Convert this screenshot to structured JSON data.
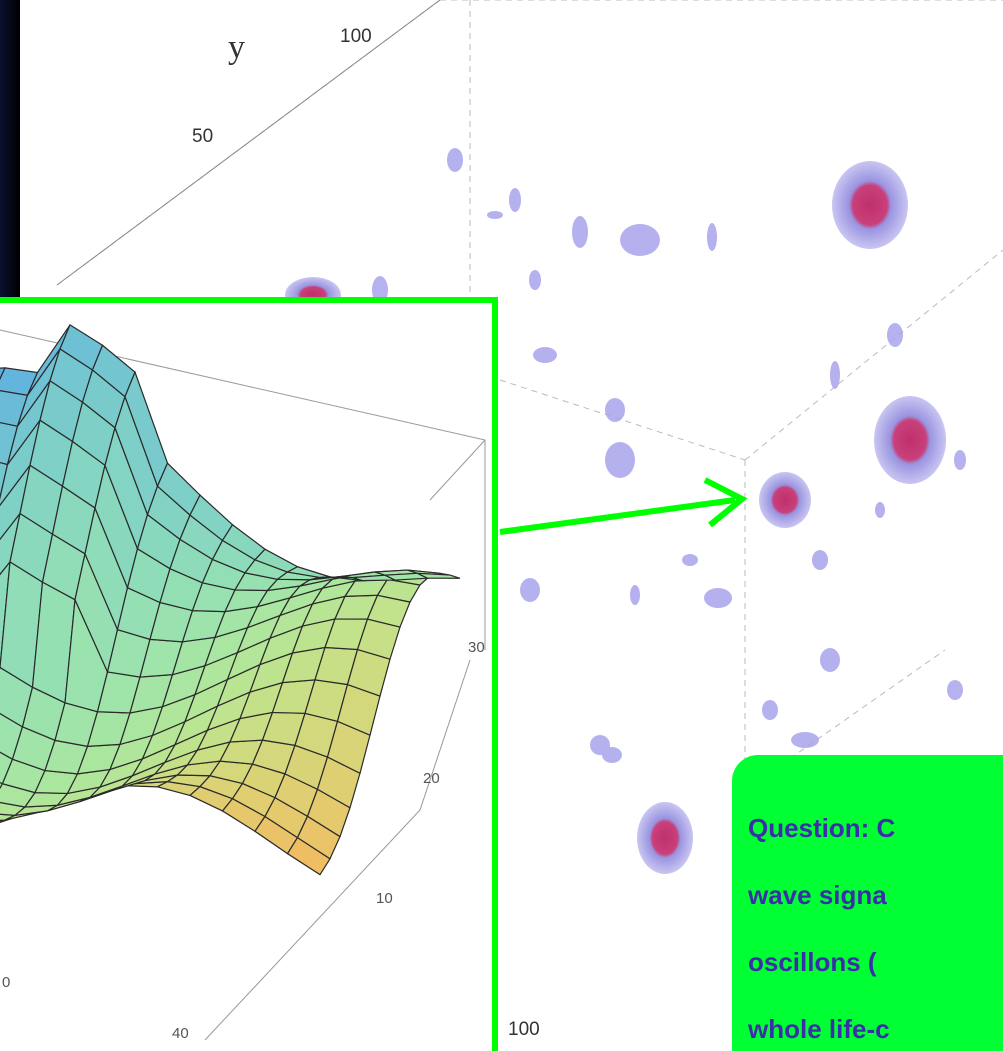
{
  "plot": {
    "axis_label": "y",
    "ticks": [
      "100",
      "50"
    ],
    "bottom_tick": "100"
  },
  "inset": {
    "ticks": [
      "30",
      "20",
      "10",
      "40",
      "0"
    ]
  },
  "callout": {
    "lines": [
      "Question: C",
      "wave signa",
      "oscillons (",
      "whole life-c"
    ]
  }
}
